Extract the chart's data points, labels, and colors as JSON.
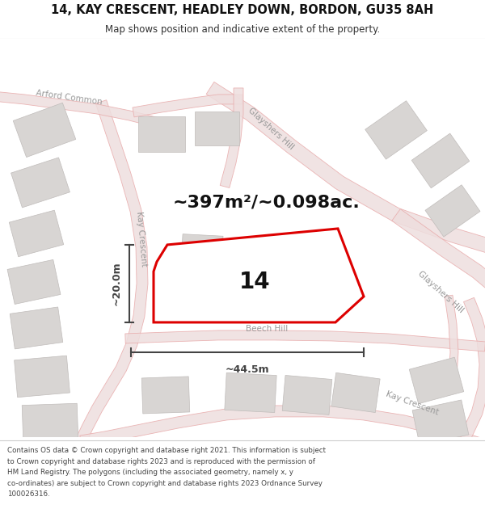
{
  "title_line1": "14, KAY CRESCENT, HEADLEY DOWN, BORDON, GU35 8AH",
  "title_line2": "Map shows position and indicative extent of the property.",
  "footer_lines": [
    "Contains OS data © Crown copyright and database right 2021. This information is subject",
    "to Crown copyright and database rights 2023 and is reproduced with the permission of",
    "HM Land Registry. The polygons (including the associated geometry, namely x, y",
    "co-ordinates) are subject to Crown copyright and database rights 2023 Ordnance Survey",
    "100026316."
  ],
  "area_label": "~397m²/~0.098ac.",
  "number_label": "14",
  "width_label": "~44.5m",
  "height_label": "~20.0m",
  "street_label_beech": "Beech Hill",
  "street_label_glayshers1": "Glayshers Hill",
  "street_label_glayshers2": "Glayshers Hill",
  "street_label_kay1": "Kay Crescent",
  "street_label_kay2": "Kay Crescent",
  "street_label_arford": "Arford Common",
  "map_bg": "#f5f3f2",
  "road_color": "#e8aaaa",
  "road_fill": "#eedede",
  "building_fill": "#d8d5d3",
  "building_edge": "#c0bcba",
  "plot_edge": "#dd0000",
  "plot_fill": "white",
  "dim_color": "#444444",
  "text_dark": "#111111",
  "text_gray": "#999999",
  "title_size": 10.5,
  "subtitle_size": 8.5,
  "footer_size": 6.3,
  "area_size": 16,
  "number_size": 20,
  "dim_label_size": 9,
  "road_label_size": 7.5
}
